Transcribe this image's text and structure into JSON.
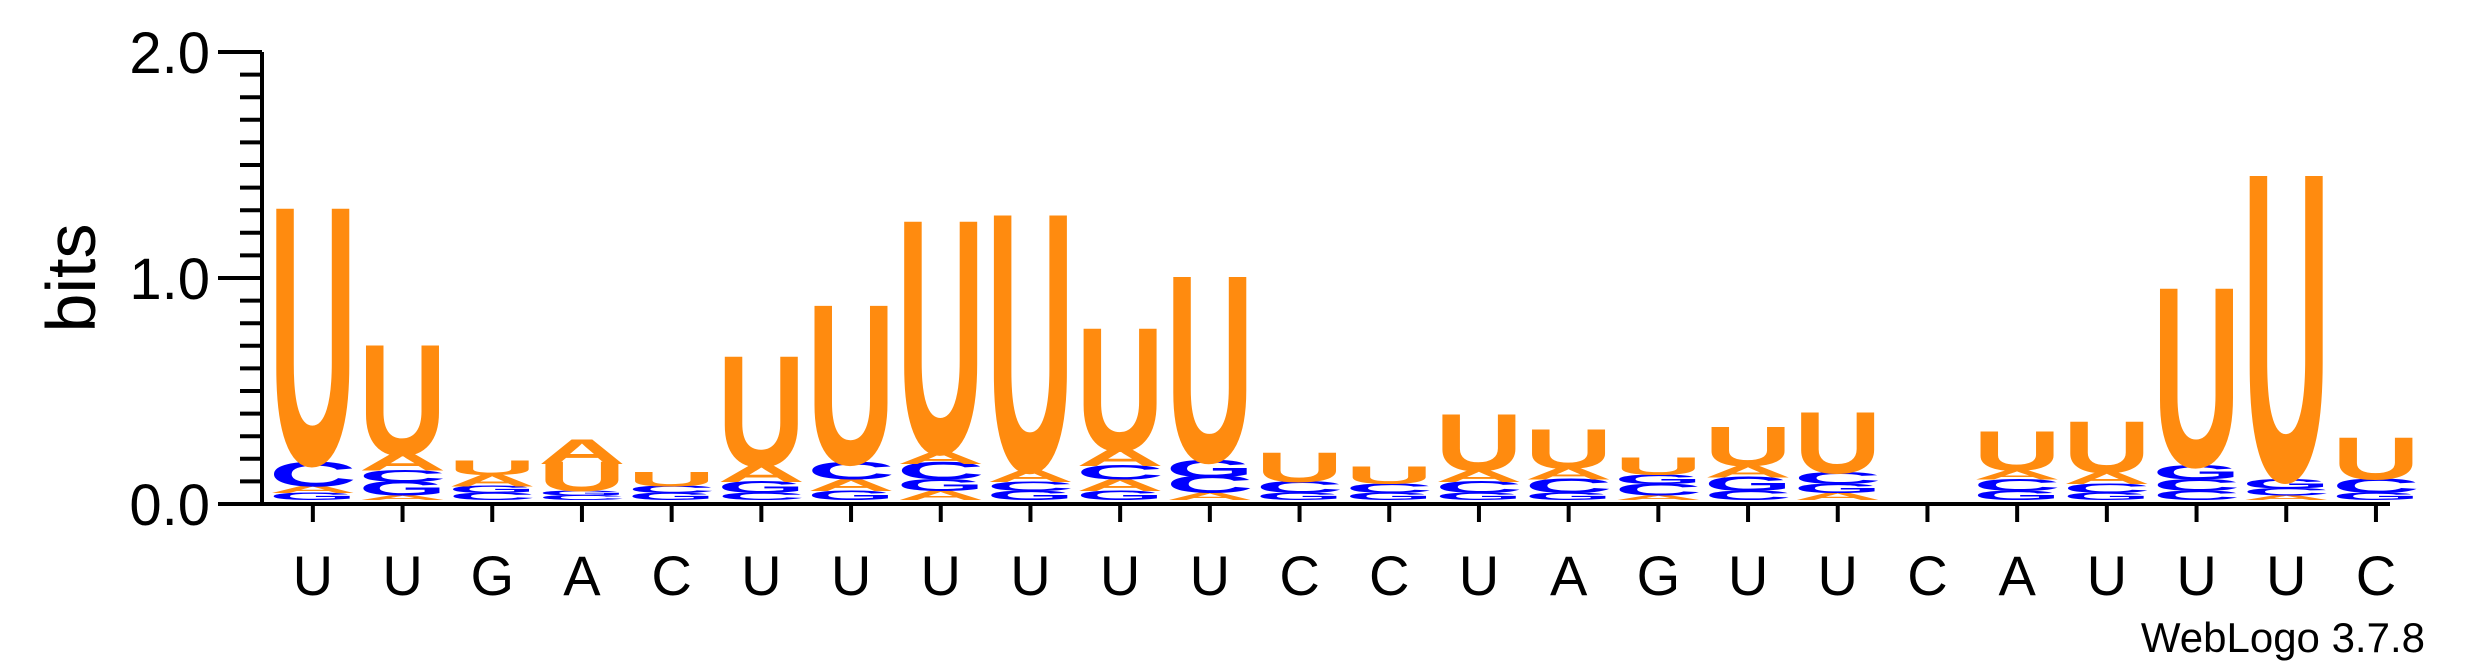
{
  "colors": {
    "U": "#ff8b0f",
    "A": "#ff8b0f",
    "C": "#0000ff",
    "G": "#0000ff"
  },
  "credit": "WebLogo 3.7.8",
  "chart_data": {
    "type": "sequence-logo",
    "ylabel": "bits",
    "ylim": [
      0,
      2.0
    ],
    "yticks": [
      {
        "value": 0.0,
        "label": "0.0"
      },
      {
        "value": 1.0,
        "label": "1.0"
      },
      {
        "value": 2.0,
        "label": "2.0"
      }
    ],
    "positions": [
      {
        "label": "U",
        "stack": [
          [
            "G",
            0.03
          ],
          [
            "A",
            0.03
          ],
          [
            "C",
            0.1
          ],
          [
            "U",
            1.05
          ]
        ]
      },
      {
        "label": "U",
        "stack": [
          [
            "A",
            0.02
          ],
          [
            "G",
            0.06
          ],
          [
            "C",
            0.05
          ],
          [
            "A",
            0.07
          ],
          [
            "U",
            0.45
          ]
        ]
      },
      {
        "label": "G",
        "stack": [
          [
            "C",
            0.03
          ],
          [
            "G",
            0.03
          ],
          [
            "A",
            0.05
          ],
          [
            "U",
            0.06
          ]
        ]
      },
      {
        "label": "A",
        "stack": [
          [
            "C",
            0.02
          ],
          [
            "G",
            0.02
          ],
          [
            "U",
            0.12
          ],
          [
            "A",
            0.1
          ]
        ]
      },
      {
        "label": "C",
        "stack": [
          [
            "G",
            0.03
          ],
          [
            "C",
            0.03
          ],
          [
            "U",
            0.06
          ]
        ]
      },
      {
        "label": "U",
        "stack": [
          [
            "C",
            0.03
          ],
          [
            "G",
            0.05
          ],
          [
            "A",
            0.07
          ],
          [
            "U",
            0.45
          ]
        ]
      },
      {
        "label": "U",
        "stack": [
          [
            "G",
            0.04
          ],
          [
            "A",
            0.05
          ],
          [
            "C",
            0.07
          ],
          [
            "U",
            0.65
          ]
        ]
      },
      {
        "label": "U",
        "stack": [
          [
            "A",
            0.04
          ],
          [
            "G",
            0.05
          ],
          [
            "C",
            0.07
          ],
          [
            "A",
            0.05
          ],
          [
            "U",
            0.95
          ]
        ]
      },
      {
        "label": "U",
        "stack": [
          [
            "G",
            0.04
          ],
          [
            "C",
            0.04
          ],
          [
            "A",
            0.05
          ],
          [
            "U",
            1.05
          ]
        ]
      },
      {
        "label": "U",
        "stack": [
          [
            "G",
            0.04
          ],
          [
            "A",
            0.05
          ],
          [
            "C",
            0.06
          ],
          [
            "A",
            0.07
          ],
          [
            "U",
            0.5
          ]
        ]
      },
      {
        "label": "U",
        "stack": [
          [
            "A",
            0.03
          ],
          [
            "C",
            0.07
          ],
          [
            "G",
            0.07
          ],
          [
            "U",
            0.76
          ]
        ]
      },
      {
        "label": "C",
        "stack": [
          [
            "G",
            0.03
          ],
          [
            "C",
            0.05
          ],
          [
            "U",
            0.12
          ]
        ]
      },
      {
        "label": "C",
        "stack": [
          [
            "G",
            0.03
          ],
          [
            "C",
            0.04
          ],
          [
            "U",
            0.07
          ]
        ]
      },
      {
        "label": "U",
        "stack": [
          [
            "G",
            0.03
          ],
          [
            "C",
            0.05
          ],
          [
            "A",
            0.05
          ],
          [
            "U",
            0.23
          ]
        ]
      },
      {
        "label": "A",
        "stack": [
          [
            "G",
            0.03
          ],
          [
            "C",
            0.06
          ],
          [
            "A",
            0.05
          ],
          [
            "U",
            0.16
          ]
        ]
      },
      {
        "label": "G",
        "stack": [
          [
            "A",
            0.02
          ],
          [
            "C",
            0.05
          ],
          [
            "G",
            0.04
          ],
          [
            "U",
            0.07
          ]
        ]
      },
      {
        "label": "U",
        "stack": [
          [
            "C",
            0.04
          ],
          [
            "G",
            0.06
          ],
          [
            "A",
            0.05
          ],
          [
            "U",
            0.16
          ]
        ]
      },
      {
        "label": "U",
        "stack": [
          [
            "A",
            0.03
          ],
          [
            "G",
            0.04
          ],
          [
            "C",
            0.05
          ],
          [
            "U",
            0.25
          ]
        ]
      },
      {
        "label": "C",
        "stack": []
      },
      {
        "label": "A",
        "stack": [
          [
            "G",
            0.04
          ],
          [
            "C",
            0.05
          ],
          [
            "A",
            0.04
          ],
          [
            "U",
            0.16
          ]
        ]
      },
      {
        "label": "U",
        "stack": [
          [
            "G",
            0.03
          ],
          [
            "C",
            0.04
          ],
          [
            "A",
            0.05
          ],
          [
            "U",
            0.21
          ]
        ]
      },
      {
        "label": "U",
        "stack": [
          [
            "C",
            0.04
          ],
          [
            "C",
            0.05
          ],
          [
            "G",
            0.06
          ],
          [
            "U",
            0.73
          ]
        ]
      },
      {
        "label": "U",
        "stack": [
          [
            "A",
            0.02
          ],
          [
            "C",
            0.03
          ],
          [
            "G",
            0.04
          ],
          [
            "U",
            1.25
          ]
        ]
      },
      {
        "label": "C",
        "stack": [
          [
            "G",
            0.03
          ],
          [
            "C",
            0.06
          ],
          [
            "U",
            0.17
          ]
        ]
      }
    ]
  }
}
